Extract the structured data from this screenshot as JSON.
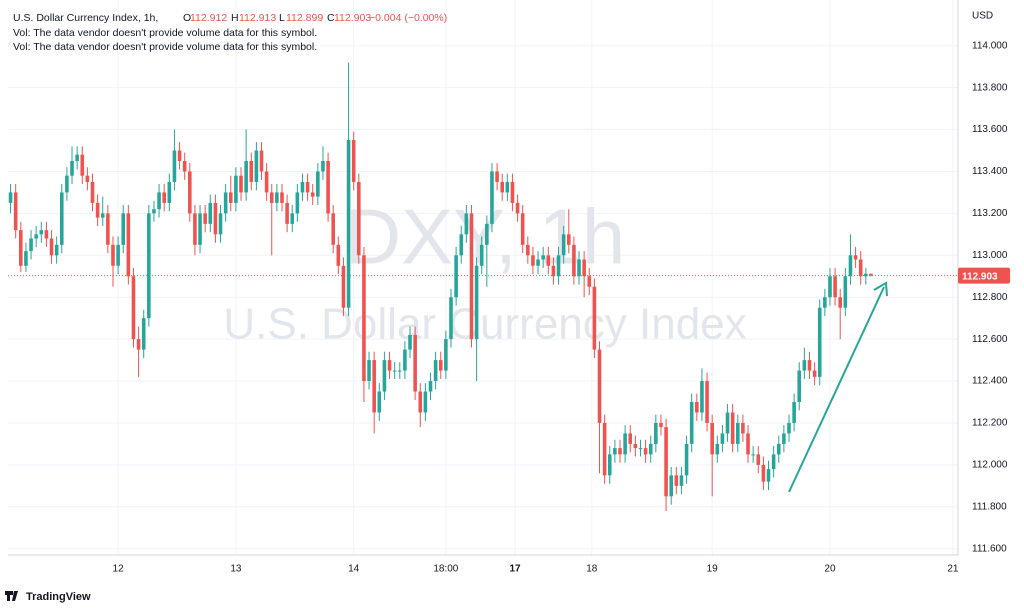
{
  "chart_data": {
    "type": "candlestick",
    "symbol": "U.S. Dollar Currency Index, 1h,",
    "ohlc_header": {
      "labels": [
        "O",
        "H",
        "L",
        "C"
      ],
      "values": [
        "112.912",
        "112.913",
        "112.899",
        "112.903"
      ],
      "change": "−0.004 (−0.00%)"
    },
    "notes": [
      "Vol: The data vendor doesn't provide volume data for this symbol.",
      "Vol: The data vendor doesn't provide volume data for this symbol."
    ],
    "watermark": [
      "DXY, 1h",
      "U.S. Dollar Currency Index"
    ],
    "currency": "USD",
    "footer": "TradingView",
    "up_color": "#26a69a",
    "down_color": "#ef5350",
    "grid": true,
    "ylim": [
      111.57,
      114.18
    ],
    "yticks": [
      {
        "value": 111.6,
        "label": "111.600"
      },
      {
        "value": 111.8,
        "label": "111.800"
      },
      {
        "value": 112,
        "label": "112.000"
      },
      {
        "value": 112.2,
        "label": "112.200"
      },
      {
        "value": 112.4,
        "label": "112.400"
      },
      {
        "value": 112.6,
        "label": "112.600"
      },
      {
        "value": 112.8,
        "label": "112.800"
      },
      {
        "value": 113,
        "label": "113.000"
      },
      {
        "value": 113.2,
        "label": "113.200"
      },
      {
        "value": 113.4,
        "label": "113.400"
      },
      {
        "value": 113.6,
        "label": "113.600"
      },
      {
        "value": 113.8,
        "label": "113.800"
      },
      {
        "value": 114,
        "label": "114.000"
      }
    ],
    "xlim": [
      -0.5,
      185
    ],
    "xticks": [
      {
        "value": 21,
        "label": "12"
      },
      {
        "value": 44,
        "label": "13"
      },
      {
        "value": 67,
        "label": "14"
      },
      {
        "value": 85,
        "label": "18:00"
      },
      {
        "value": 98.5,
        "label": "17"
      },
      {
        "value": 113.5,
        "label": "18"
      },
      {
        "value": 137,
        "label": "19"
      },
      {
        "value": 160,
        "label": "20"
      },
      {
        "value": 184,
        "label": "21"
      }
    ],
    "ohlc": [
      [
        113.25,
        113.34,
        113.2,
        113.3
      ],
      [
        113.3,
        113.34,
        113.08,
        113.12
      ],
      [
        113.12,
        113.16,
        112.92,
        112.95
      ],
      [
        112.95,
        113.06,
        112.92,
        113.02
      ],
      [
        113.02,
        113.12,
        112.98,
        113.08
      ],
      [
        113.08,
        113.14,
        113.04,
        113.1
      ],
      [
        113.1,
        113.16,
        113.06,
        113.12
      ],
      [
        113.12,
        113.16,
        113.04,
        113.08
      ],
      [
        113.08,
        113.12,
        112.96,
        113
      ],
      [
        113,
        113.09,
        112.96,
        113.05
      ],
      [
        113.05,
        113.34,
        113.01,
        113.3
      ],
      [
        113.3,
        113.42,
        113.26,
        113.38
      ],
      [
        113.38,
        113.52,
        113.34,
        113.45
      ],
      [
        113.45,
        113.52,
        113.41,
        113.48
      ],
      [
        113.48,
        113.52,
        113.34,
        113.38
      ],
      [
        113.38,
        113.42,
        113.31,
        113.35
      ],
      [
        113.35,
        113.39,
        113.21,
        113.25
      ],
      [
        113.25,
        113.29,
        113.14,
        113.18
      ],
      [
        113.18,
        113.28,
        113.14,
        113.2
      ],
      [
        113.2,
        113.24,
        113.01,
        113.05
      ],
      [
        113.05,
        113.09,
        112.85,
        112.95
      ],
      [
        112.95,
        113.09,
        112.91,
        113.05
      ],
      [
        113.05,
        113.24,
        113.01,
        113.2
      ],
      [
        113.2,
        113.24,
        112.86,
        112.9
      ],
      [
        112.9,
        112.94,
        112.56,
        112.6
      ],
      [
        112.6,
        112.66,
        112.42,
        112.55
      ],
      [
        112.55,
        112.74,
        112.51,
        112.7
      ],
      [
        112.7,
        113.24,
        112.66,
        113.2
      ],
      [
        113.2,
        113.26,
        113.16,
        113.22
      ],
      [
        113.22,
        113.34,
        113.18,
        113.3
      ],
      [
        113.3,
        113.34,
        113.21,
        113.25
      ],
      [
        113.25,
        113.39,
        113.21,
        113.35
      ],
      [
        113.35,
        113.6,
        113.31,
        113.5
      ],
      [
        113.5,
        113.54,
        113.41,
        113.45
      ],
      [
        113.45,
        113.49,
        113.36,
        113.4
      ],
      [
        113.4,
        113.44,
        113.16,
        113.2
      ],
      [
        113.2,
        113.24,
        113,
        113.05
      ],
      [
        113.05,
        113.24,
        113.01,
        113.2
      ],
      [
        113.2,
        113.24,
        113.11,
        113.15
      ],
      [
        113.15,
        113.29,
        113.11,
        113.25
      ],
      [
        113.25,
        113.29,
        113.06,
        113.1
      ],
      [
        113.1,
        113.24,
        113.06,
        113.2
      ],
      [
        113.2,
        113.34,
        113.16,
        113.3
      ],
      [
        113.3,
        113.38,
        113.21,
        113.25
      ],
      [
        113.25,
        113.42,
        113.21,
        113.38
      ],
      [
        113.38,
        113.42,
        113.26,
        113.3
      ],
      [
        113.3,
        113.6,
        113.26,
        113.45
      ],
      [
        113.45,
        113.49,
        113.31,
        113.35
      ],
      [
        113.35,
        113.54,
        113.31,
        113.5
      ],
      [
        113.5,
        113.54,
        113.36,
        113.4
      ],
      [
        113.4,
        113.44,
        113.26,
        113.3
      ],
      [
        113.3,
        113.34,
        113,
        113.25
      ],
      [
        113.25,
        113.34,
        113.21,
        113.3
      ],
      [
        113.3,
        113.34,
        113.21,
        113.25
      ],
      [
        113.25,
        113.29,
        113.11,
        113.15
      ],
      [
        113.15,
        113.24,
        113.11,
        113.2
      ],
      [
        113.2,
        113.34,
        113.16,
        113.3
      ],
      [
        113.3,
        113.39,
        113.26,
        113.35
      ],
      [
        113.35,
        113.39,
        113.26,
        113.3
      ],
      [
        113.3,
        113.34,
        113.24,
        113.28
      ],
      [
        113.28,
        113.44,
        113.24,
        113.4
      ],
      [
        113.4,
        113.52,
        113.36,
        113.45
      ],
      [
        113.45,
        113.49,
        113.16,
        113.2
      ],
      [
        113.2,
        113.24,
        113.01,
        113.05
      ],
      [
        113.05,
        113.09,
        112.91,
        112.95
      ],
      [
        112.95,
        112.99,
        112.71,
        112.75
      ],
      [
        112.75,
        113.92,
        112.71,
        113.55
      ],
      [
        113.55,
        113.59,
        113.31,
        113.35
      ],
      [
        113.35,
        113.39,
        112.96,
        113
      ],
      [
        113,
        113.04,
        112.3,
        112.4
      ],
      [
        112.4,
        112.54,
        112.36,
        112.5
      ],
      [
        112.5,
        112.54,
        112.15,
        112.25
      ],
      [
        112.25,
        112.39,
        112.21,
        112.35
      ],
      [
        112.35,
        112.54,
        112.31,
        112.5
      ],
      [
        112.5,
        112.54,
        112.41,
        112.45
      ],
      [
        112.45,
        112.49,
        112.41,
        112.45
      ],
      [
        112.45,
        112.49,
        112.41,
        112.45
      ],
      [
        112.45,
        112.59,
        112.41,
        112.55
      ],
      [
        112.55,
        112.66,
        112.51,
        112.62
      ],
      [
        112.62,
        112.66,
        112.31,
        112.35
      ],
      [
        112.35,
        112.39,
        112.18,
        112.25
      ],
      [
        112.25,
        112.39,
        112.21,
        112.35
      ],
      [
        112.35,
        112.44,
        112.31,
        112.4
      ],
      [
        112.4,
        112.54,
        112.36,
        112.5
      ],
      [
        112.5,
        112.54,
        112.41,
        112.45
      ],
      [
        112.45,
        112.64,
        112.41,
        112.6
      ],
      [
        112.6,
        112.84,
        112.56,
        112.8
      ],
      [
        112.8,
        113.04,
        112.76,
        113
      ],
      [
        113,
        113.14,
        112.96,
        113.1
      ],
      [
        113.1,
        113.24,
        113.06,
        113.2
      ],
      [
        113.2,
        113.24,
        112.56,
        112.6
      ],
      [
        112.6,
        112.99,
        112.4,
        112.95
      ],
      [
        112.95,
        113.09,
        112.91,
        113.05
      ],
      [
        113.05,
        113.19,
        112.85,
        113.15
      ],
      [
        113.15,
        113.44,
        113.11,
        113.4
      ],
      [
        113.4,
        113.44,
        113.31,
        113.35
      ],
      [
        113.35,
        113.39,
        113.26,
        113.3
      ],
      [
        113.3,
        113.39,
        113.26,
        113.35
      ],
      [
        113.35,
        113.39,
        113.21,
        113.25
      ],
      [
        113.25,
        113.29,
        113.16,
        113.2
      ],
      [
        113.2,
        113.24,
        113.01,
        113.05
      ],
      [
        113.05,
        113.09,
        112.96,
        113
      ],
      [
        113,
        113.04,
        112.91,
        112.95
      ],
      [
        112.95,
        113.02,
        112.91,
        112.98
      ],
      [
        112.98,
        113.04,
        112.94,
        113
      ],
      [
        113,
        113.04,
        112.91,
        112.95
      ],
      [
        112.95,
        112.99,
        112.86,
        112.9
      ],
      [
        112.9,
        113.04,
        112.86,
        113
      ],
      [
        113,
        113.14,
        112.96,
        113.1
      ],
      [
        113.1,
        113.22,
        113.01,
        113.05
      ],
      [
        113.05,
        113.09,
        112.86,
        112.9
      ],
      [
        112.9,
        113.02,
        112.86,
        112.98
      ],
      [
        112.98,
        113.02,
        112.8,
        112.9
      ],
      [
        112.9,
        112.94,
        112.81,
        112.85
      ],
      [
        112.85,
        112.89,
        112.51,
        112.55
      ],
      [
        112.55,
        112.59,
        111.96,
        112.2
      ],
      [
        112.2,
        112.24,
        111.91,
        111.95
      ],
      [
        111.95,
        112.09,
        111.91,
        112.05
      ],
      [
        112.05,
        112.12,
        112.01,
        112.08
      ],
      [
        112.08,
        112.12,
        112.01,
        112.05
      ],
      [
        112.05,
        112.19,
        112.01,
        112.15
      ],
      [
        112.15,
        112.19,
        112.06,
        112.1
      ],
      [
        112.1,
        112.14,
        112.04,
        112.08
      ],
      [
        112.08,
        112.12,
        112.04,
        112.08
      ],
      [
        112.08,
        112.12,
        112.01,
        112.05
      ],
      [
        112.05,
        112.14,
        112.01,
        112.1
      ],
      [
        112.1,
        112.24,
        112.06,
        112.2
      ],
      [
        112.2,
        112.24,
        112.14,
        112.18
      ],
      [
        112.18,
        112.22,
        111.78,
        111.85
      ],
      [
        111.85,
        111.99,
        111.81,
        111.95
      ],
      [
        111.95,
        111.99,
        111.86,
        111.9
      ],
      [
        111.9,
        111.99,
        111.86,
        111.95
      ],
      [
        111.95,
        112.14,
        111.91,
        112.1
      ],
      [
        112.1,
        112.34,
        112.06,
        112.3
      ],
      [
        112.3,
        112.34,
        112.21,
        112.25
      ],
      [
        112.25,
        112.46,
        112.21,
        112.4
      ],
      [
        112.4,
        112.44,
        112.16,
        112.2
      ],
      [
        112.2,
        112.24,
        111.85,
        112.05
      ],
      [
        112.05,
        112.14,
        112.01,
        112.1
      ],
      [
        112.1,
        112.19,
        112.06,
        112.15
      ],
      [
        112.15,
        112.29,
        112.11,
        112.25
      ],
      [
        112.25,
        112.29,
        112.06,
        112.1
      ],
      [
        112.1,
        112.24,
        112.06,
        112.2
      ],
      [
        112.2,
        112.24,
        112.11,
        112.15
      ],
      [
        112.15,
        112.19,
        112.01,
        112.05
      ],
      [
        112.05,
        112.09,
        112.01,
        112.05
      ],
      [
        112.05,
        112.09,
        111.96,
        112
      ],
      [
        112,
        112.04,
        111.88,
        111.92
      ],
      [
        111.92,
        112.02,
        111.88,
        111.98
      ],
      [
        111.98,
        112.09,
        111.94,
        112.05
      ],
      [
        112.05,
        112.14,
        112.01,
        112.1
      ],
      [
        112.1,
        112.19,
        112.06,
        112.15
      ],
      [
        112.15,
        112.24,
        112.11,
        112.2
      ],
      [
        112.2,
        112.34,
        112.16,
        112.3
      ],
      [
        112.3,
        112.49,
        112.26,
        112.45
      ],
      [
        112.45,
        112.56,
        112.41,
        112.5
      ],
      [
        112.5,
        112.54,
        112.41,
        112.45
      ],
      [
        112.45,
        112.49,
        112.38,
        112.42
      ],
      [
        112.42,
        112.79,
        112.38,
        112.75
      ],
      [
        112.75,
        112.84,
        112.71,
        112.8
      ],
      [
        112.8,
        112.94,
        112.76,
        112.9
      ],
      [
        112.9,
        112.94,
        112.76,
        112.8
      ],
      [
        112.8,
        112.84,
        112.6,
        112.75
      ],
      [
        112.75,
        112.94,
        112.71,
        112.9
      ],
      [
        112.9,
        113.1,
        112.86,
        113
      ],
      [
        113,
        113.04,
        112.94,
        112.98
      ],
      [
        112.98,
        113.02,
        112.86,
        112.9
      ],
      [
        112.9,
        112.94,
        112.86,
        112.912
      ],
      [
        112.912,
        112.913,
        112.899,
        112.903
      ]
    ]
  }
}
